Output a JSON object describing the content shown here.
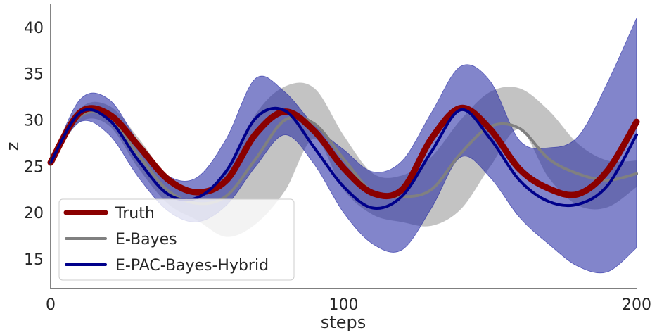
{
  "chart_data": {
    "type": "line",
    "xlabel": "steps",
    "ylabel": "z",
    "xlim": [
      0,
      200
    ],
    "ylim": [
      11.8,
      42.5
    ],
    "x_ticks": [
      0,
      100,
      200
    ],
    "y_ticks": [
      15,
      20,
      25,
      30,
      35,
      40
    ],
    "grid": false,
    "legend_position": "lower-left",
    "x": [
      0,
      10,
      20,
      30,
      40,
      50,
      60,
      70,
      80,
      90,
      100,
      110,
      120,
      130,
      140,
      150,
      160,
      170,
      180,
      190,
      200
    ],
    "series": [
      {
        "name": "Truth",
        "color": "#8b0000",
        "values": [
          25.4,
          30.8,
          30.6,
          27.2,
          23.6,
          22.2,
          23.5,
          28.5,
          30.9,
          28.8,
          24.8,
          22.1,
          22.5,
          28.0,
          31.3,
          29.0,
          24.7,
          22.6,
          22.0,
          24.5,
          29.8
        ]
      },
      {
        "name": "E-Bayes",
        "color": "#808080",
        "band_color": "#bdbdbd",
        "values": [
          25.4,
          30.4,
          30.2,
          26.2,
          22.4,
          21.0,
          21.8,
          25.8,
          30.0,
          29.6,
          25.8,
          22.2,
          21.7,
          22.5,
          26.4,
          29.3,
          29.1,
          25.8,
          24.2,
          23.5,
          24.2
        ],
        "lower": [
          25.4,
          29.8,
          29.4,
          24.8,
          21.0,
          19.2,
          17.4,
          18.8,
          22.4,
          28.0,
          22.5,
          19.8,
          19.0,
          18.6,
          20.4,
          25.0,
          29.0,
          23.8,
          20.8,
          20.6,
          22.8
        ],
        "upper": [
          25.4,
          31.2,
          31.5,
          28.0,
          23.8,
          22.2,
          24.4,
          30.6,
          33.6,
          33.4,
          28.3,
          24.2,
          24.0,
          26.0,
          30.0,
          33.0,
          33.4,
          31.0,
          27.4,
          25.6,
          25.6
        ]
      },
      {
        "name": "E-PAC-Bayes-Hybrid",
        "color": "#00008b",
        "band_color": "#1b20a0",
        "values": [
          25.4,
          30.8,
          30.0,
          25.6,
          22.0,
          21.6,
          24.5,
          30.2,
          31.0,
          27.0,
          22.8,
          20.5,
          21.8,
          26.6,
          31.1,
          28.0,
          23.5,
          21.2,
          20.9,
          22.9,
          28.4
        ],
        "lower": [
          25.4,
          29.8,
          28.4,
          23.8,
          20.2,
          19.0,
          20.8,
          25.0,
          28.4,
          25.2,
          20.0,
          16.6,
          16.0,
          20.5,
          26.0,
          23.8,
          19.5,
          16.6,
          14.2,
          13.6,
          16.2
        ],
        "upper": [
          25.4,
          32.2,
          32.2,
          27.6,
          24.0,
          23.8,
          28.0,
          34.5,
          33.0,
          29.4,
          26.8,
          24.4,
          25.6,
          30.8,
          35.8,
          34.2,
          27.8,
          27.0,
          28.2,
          34.0,
          41.0
        ]
      }
    ]
  }
}
